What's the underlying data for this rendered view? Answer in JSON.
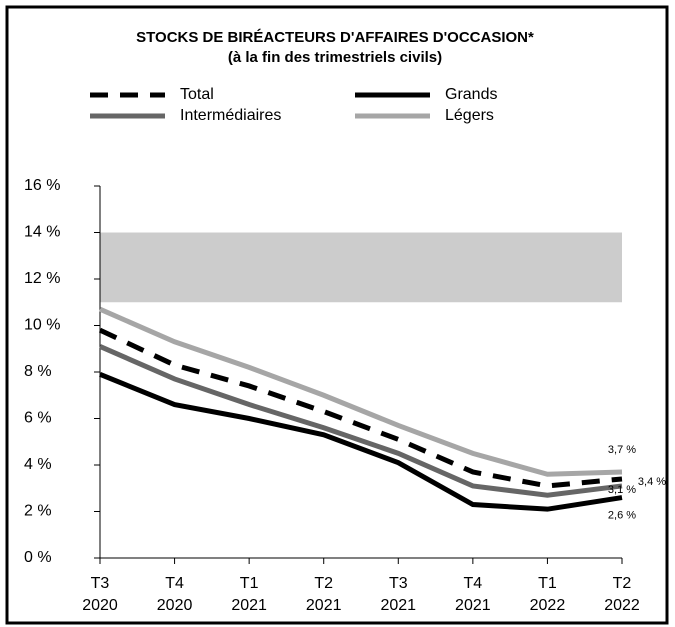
{
  "chart_data": {
    "type": "line",
    "title": "STOCKS DE BIRÉACTEURS D'AFFAIRES D'OCCASION*",
    "subtitle": "(à la fin des trimestriels civils)",
    "categories": [
      [
        "T3",
        "2020"
      ],
      [
        "T4",
        "2020"
      ],
      [
        "T1",
        "2021"
      ],
      [
        "T2",
        "2021"
      ],
      [
        "T3",
        "2021"
      ],
      [
        "T4",
        "2021"
      ],
      [
        "T1",
        "2022"
      ],
      [
        "T2",
        "2022"
      ]
    ],
    "series": [
      {
        "name": "Total",
        "color": "#000000",
        "dash": true,
        "values": [
          9.8,
          8.3,
          7.4,
          6.3,
          5.1,
          3.7,
          3.1,
          3.4
        ],
        "value_labels": [
          null,
          null,
          null,
          null,
          null,
          null,
          null,
          "3,4 %"
        ]
      },
      {
        "name": "Grands",
        "color": "#000000",
        "dash": false,
        "values": [
          7.9,
          6.6,
          6.0,
          5.3,
          4.1,
          2.3,
          2.1,
          2.6
        ],
        "value_labels": [
          null,
          null,
          null,
          null,
          null,
          null,
          null,
          "2,6 %"
        ]
      },
      {
        "name": "Intermédiaires",
        "color": "#666666",
        "dash": false,
        "values": [
          9.1,
          7.7,
          6.6,
          5.6,
          4.5,
          3.1,
          2.7,
          3.1
        ],
        "value_labels": [
          null,
          null,
          null,
          null,
          null,
          null,
          null,
          "3,1 %"
        ]
      },
      {
        "name": "Légers",
        "color": "#a6a6a6",
        "dash": false,
        "values": [
          10.7,
          9.3,
          8.2,
          7.0,
          5.7,
          4.5,
          3.6,
          3.7
        ],
        "value_labels": [
          null,
          null,
          null,
          null,
          null,
          null,
          null,
          "3,7 %"
        ]
      }
    ],
    "shaded_range": [
      11,
      14
    ],
    "shaded_color": "#cccccc",
    "ylim": [
      0,
      16
    ],
    "yticks": [
      {
        "value": 0,
        "label": "0 %"
      },
      {
        "value": 2,
        "label": "2 %"
      },
      {
        "value": 4,
        "label": "4 %"
      },
      {
        "value": 6,
        "label": "6 %"
      },
      {
        "value": 8,
        "label": "8 %"
      },
      {
        "value": 10,
        "label": "10 %"
      },
      {
        "value": 12,
        "label": "12 %"
      },
      {
        "value": 14,
        "label": "14 %"
      },
      {
        "value": 16,
        "label": "16 %"
      }
    ],
    "grid": false,
    "legend": "top"
  }
}
